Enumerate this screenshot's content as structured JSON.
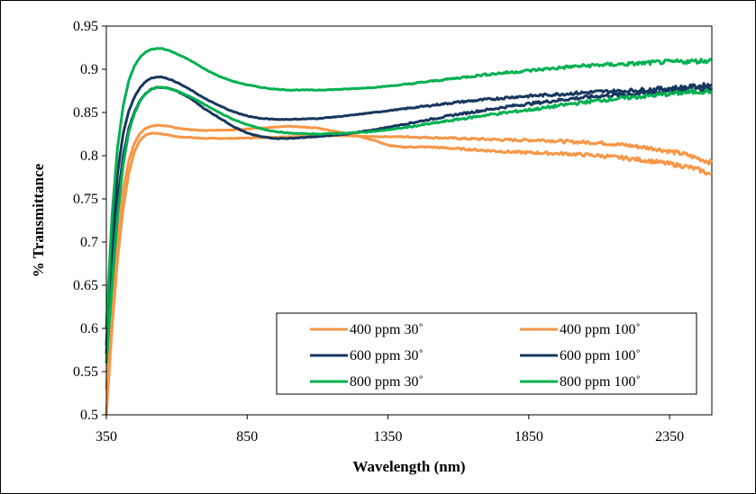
{
  "chart_data": {
    "type": "line",
    "title": "",
    "xlabel": "Wavelength (nm)",
    "ylabel": "% Transmittance",
    "xlim": [
      350,
      2500
    ],
    "ylim": [
      0.5,
      0.95
    ],
    "xticks": [
      350,
      850,
      1350,
      1850,
      2350
    ],
    "xtick_labels": [
      "350",
      "850",
      "1350",
      "1850",
      "2350"
    ],
    "yticks": [
      0.5,
      0.55,
      0.6,
      0.65,
      0.7,
      0.75,
      0.8,
      0.85,
      0.9,
      0.95
    ],
    "ytick_labels": [
      "0.5",
      "0.55",
      "0.6",
      "0.65",
      "0.7",
      "0.75",
      "0.8",
      "0.85",
      "0.9",
      "0.95"
    ],
    "grid": false,
    "legend_position": "bottom-right",
    "series": [
      {
        "name": "400 ppm 30˚",
        "color": "#F79646",
        "x": [
          350,
          370,
          390,
          410,
          430,
          450,
          470,
          490,
          510,
          530,
          550,
          570,
          600,
          650,
          700,
          800,
          900,
          1000,
          1100,
          1200,
          1300,
          1350,
          1400,
          1500,
          1600,
          1700,
          1800,
          1900,
          2000,
          2100,
          2200,
          2300,
          2400,
          2450,
          2500
        ],
        "y": [
          0.5,
          0.6,
          0.68,
          0.74,
          0.78,
          0.805,
          0.818,
          0.824,
          0.826,
          0.826,
          0.825,
          0.824,
          0.822,
          0.821,
          0.82,
          0.82,
          0.821,
          0.822,
          0.823,
          0.823,
          0.822,
          0.822,
          0.822,
          0.821,
          0.82,
          0.819,
          0.818,
          0.818,
          0.816,
          0.815,
          0.812,
          0.808,
          0.802,
          0.797,
          0.792
        ]
      },
      {
        "name": "400 ppm 100˚",
        "color": "#F79646",
        "x": [
          350,
          370,
          390,
          410,
          430,
          450,
          470,
          490,
          510,
          530,
          550,
          570,
          600,
          650,
          700,
          800,
          900,
          1000,
          1100,
          1200,
          1300,
          1350,
          1400,
          1500,
          1600,
          1700,
          1800,
          1900,
          2000,
          2100,
          2200,
          2300,
          2400,
          2450,
          2500
        ],
        "y": [
          0.53,
          0.62,
          0.7,
          0.76,
          0.795,
          0.815,
          0.826,
          0.832,
          0.834,
          0.835,
          0.835,
          0.834,
          0.832,
          0.83,
          0.829,
          0.83,
          0.832,
          0.834,
          0.832,
          0.826,
          0.818,
          0.812,
          0.81,
          0.81,
          0.808,
          0.806,
          0.804,
          0.803,
          0.802,
          0.8,
          0.797,
          0.793,
          0.788,
          0.784,
          0.778
        ]
      },
      {
        "name": "600 ppm 30˚",
        "color": "#17375E",
        "x": [
          350,
          370,
          390,
          410,
          430,
          450,
          470,
          490,
          510,
          530,
          550,
          570,
          600,
          650,
          700,
          750,
          800,
          850,
          900,
          950,
          1000,
          1100,
          1200,
          1300,
          1400,
          1500,
          1600,
          1700,
          1800,
          1900,
          2000,
          2100,
          2200,
          2300,
          2400,
          2500
        ],
        "y": [
          0.57,
          0.67,
          0.75,
          0.8,
          0.832,
          0.851,
          0.864,
          0.872,
          0.877,
          0.879,
          0.879,
          0.878,
          0.875,
          0.866,
          0.854,
          0.844,
          0.834,
          0.826,
          0.822,
          0.82,
          0.82,
          0.822,
          0.825,
          0.83,
          0.836,
          0.842,
          0.848,
          0.853,
          0.858,
          0.862,
          0.866,
          0.869,
          0.871,
          0.873,
          0.876,
          0.878
        ]
      },
      {
        "name": "600 ppm 100˚",
        "color": "#17375E",
        "x": [
          350,
          370,
          390,
          410,
          430,
          450,
          470,
          490,
          510,
          530,
          550,
          570,
          600,
          650,
          700,
          750,
          800,
          850,
          900,
          950,
          1000,
          1100,
          1200,
          1300,
          1400,
          1500,
          1600,
          1700,
          1800,
          1900,
          2000,
          2100,
          2200,
          2300,
          2400,
          2500
        ],
        "y": [
          0.58,
          0.7,
          0.78,
          0.826,
          0.852,
          0.868,
          0.879,
          0.886,
          0.89,
          0.891,
          0.891,
          0.889,
          0.885,
          0.876,
          0.866,
          0.858,
          0.851,
          0.846,
          0.843,
          0.842,
          0.842,
          0.843,
          0.846,
          0.85,
          0.854,
          0.858,
          0.862,
          0.865,
          0.868,
          0.87,
          0.872,
          0.874,
          0.875,
          0.877,
          0.879,
          0.882
        ]
      },
      {
        "name": "800 ppm 30˚",
        "color": "#00B050",
        "x": [
          350,
          370,
          390,
          410,
          430,
          450,
          470,
          490,
          510,
          530,
          550,
          570,
          600,
          650,
          700,
          750,
          800,
          850,
          900,
          950,
          1000,
          1100,
          1200,
          1300,
          1400,
          1500,
          1600,
          1700,
          1800,
          1900,
          2000,
          2100,
          2200,
          2300,
          2400,
          2500
        ],
        "y": [
          0.56,
          0.65,
          0.73,
          0.79,
          0.828,
          0.849,
          0.863,
          0.872,
          0.877,
          0.879,
          0.879,
          0.878,
          0.875,
          0.868,
          0.859,
          0.85,
          0.842,
          0.836,
          0.831,
          0.828,
          0.826,
          0.825,
          0.826,
          0.828,
          0.832,
          0.837,
          0.842,
          0.847,
          0.851,
          0.855,
          0.86,
          0.864,
          0.867,
          0.87,
          0.873,
          0.875
        ]
      },
      {
        "name": "800 ppm 100˚",
        "color": "#00B050",
        "x": [
          350,
          370,
          390,
          410,
          430,
          450,
          470,
          490,
          510,
          530,
          550,
          570,
          600,
          650,
          700,
          750,
          800,
          850,
          900,
          950,
          1000,
          1050,
          1100,
          1200,
          1300,
          1400,
          1500,
          1600,
          1700,
          1800,
          1900,
          2000,
          2100,
          2200,
          2300,
          2400,
          2500
        ],
        "y": [
          0.6,
          0.73,
          0.81,
          0.858,
          0.887,
          0.904,
          0.914,
          0.92,
          0.923,
          0.924,
          0.924,
          0.922,
          0.918,
          0.91,
          0.9,
          0.892,
          0.886,
          0.882,
          0.879,
          0.877,
          0.876,
          0.876,
          0.876,
          0.877,
          0.879,
          0.882,
          0.886,
          0.89,
          0.894,
          0.897,
          0.9,
          0.903,
          0.905,
          0.906,
          0.908,
          0.909,
          0.91
        ]
      }
    ],
    "legend": {
      "columns": [
        [
          "400 ppm 30˚",
          "600 ppm 30˚",
          "800 ppm 30˚"
        ],
        [
          "400 ppm 100˚",
          "600 ppm 100˚",
          "800 ppm 100˚"
        ]
      ]
    }
  }
}
